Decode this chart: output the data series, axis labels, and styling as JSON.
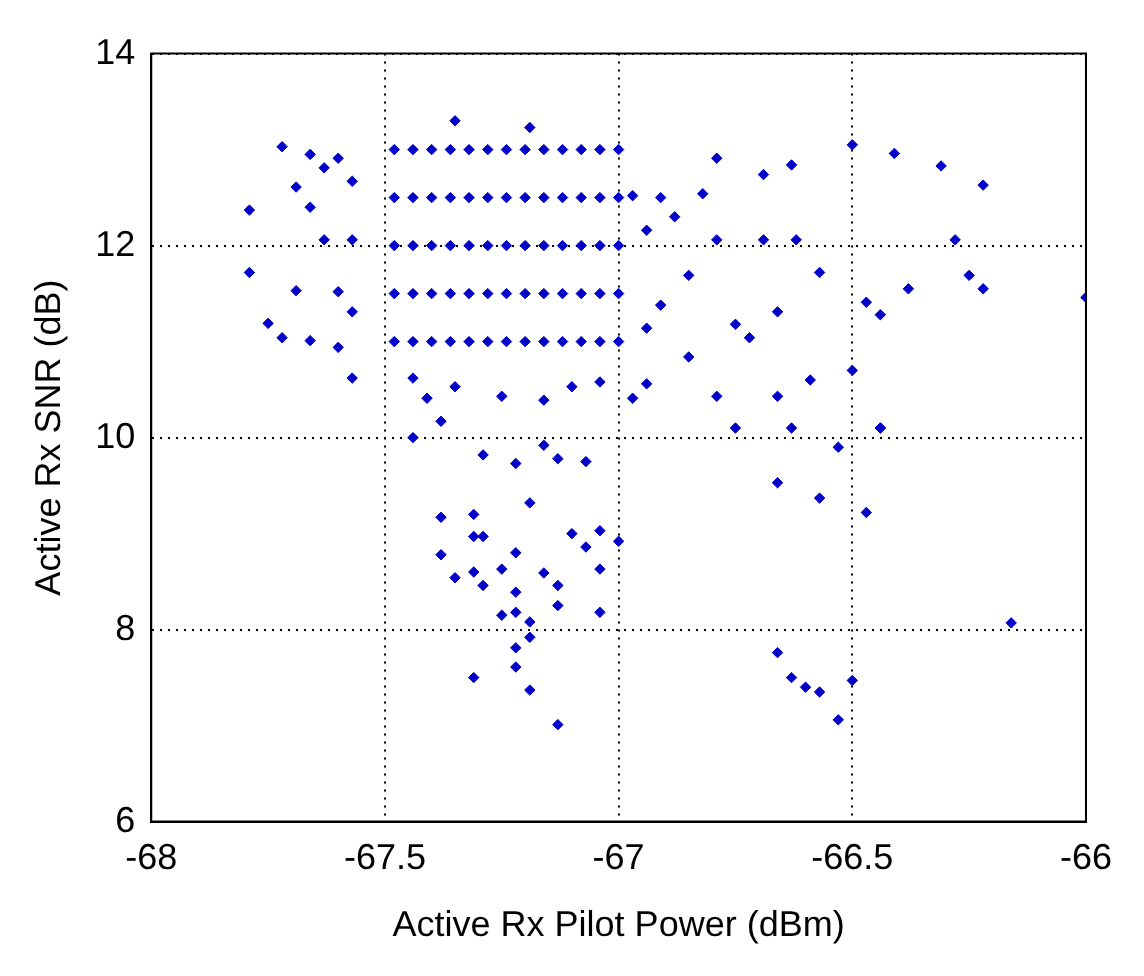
{
  "chart_data": {
    "type": "scatter",
    "xlabel": "Active Rx Pilot Power (dBm)",
    "ylabel": "Active Rx SNR (dB)",
    "xlim": [
      -68,
      -66
    ],
    "xticks": [
      -68,
      -67.5,
      -67,
      -66.5,
      -66
    ],
    "ylim": [
      6,
      14
    ],
    "yticks": [
      6,
      8,
      10,
      12,
      14
    ],
    "grid": true,
    "legend": false,
    "marker": "diamond",
    "series": [
      {
        "color": "#0000c8",
        "x": [
          -67.48,
          -67.44,
          -67.4,
          -67.36,
          -67.32,
          -67.28,
          -67.24,
          -67.2,
          -67.16,
          -67.12,
          -67.08,
          -67.04,
          -67.0,
          -67.48,
          -67.44,
          -67.4,
          -67.36,
          -67.32,
          -67.28,
          -67.24,
          -67.2,
          -67.16,
          -67.12,
          -67.08,
          -67.04,
          -67.0,
          -67.48,
          -67.44,
          -67.4,
          -67.36,
          -67.32,
          -67.28,
          -67.24,
          -67.2,
          -67.16,
          -67.12,
          -67.08,
          -67.04,
          -67.0,
          -67.48,
          -67.44,
          -67.4,
          -67.36,
          -67.32,
          -67.28,
          -67.24,
          -67.2,
          -67.16,
          -67.12,
          -67.08,
          -67.04,
          -67.0,
          -67.48,
          -67.44,
          -67.4,
          -67.36,
          -67.32,
          -67.28,
          -67.24,
          -67.2,
          -67.16,
          -67.12,
          -67.08,
          -67.04,
          -67.0,
          -67.35,
          -67.19,
          -67.44,
          -67.41,
          -67.35,
          -67.38,
          -67.25,
          -67.16,
          -67.1,
          -67.04,
          -67.44,
          -67.38,
          -67.31,
          -67.29,
          -67.22,
          -67.16,
          -67.13,
          -67.07,
          -67.19,
          -67.31,
          -67.29,
          -67.38,
          -67.35,
          -67.31,
          -67.29,
          -67.25,
          -67.22,
          -67.25,
          -67.22,
          -67.22,
          -67.19,
          -67.19,
          -67.22,
          -67.16,
          -67.13,
          -67.13,
          -67.1,
          -67.07,
          -67.04,
          -67.04,
          -67.04,
          -67.0,
          -67.31,
          -67.22,
          -67.19,
          -67.13,
          -66.66,
          -66.57,
          -66.53,
          -66.47,
          -66.44,
          -66.66,
          -66.63,
          -66.6,
          -66.57,
          -66.5,
          -66.53,
          -66.16,
          -66.75,
          -66.63,
          -66.0,
          -66.79,
          -66.5,
          -66.41,
          -66.31,
          -66.22,
          -66.22,
          -66.25,
          -66.28,
          -66.38,
          -66.44,
          -66.47,
          -66.5,
          -66.44,
          -66.63,
          -66.69,
          -66.69,
          -66.62,
          -66.57,
          -66.66,
          -66.75,
          -66.72,
          -66.59,
          -66.79,
          -66.66,
          -66.79,
          -66.82,
          -66.85,
          -66.88,
          -66.91,
          -66.91,
          -66.94,
          -66.94,
          -66.85,
          -66.94,
          -66.97,
          -66.97,
          -67.79,
          -67.79,
          -67.75,
          -67.72,
          -67.72,
          -67.69,
          -67.69,
          -67.66,
          -67.66,
          -67.63,
          -67.63,
          -67.6,
          -67.6,
          -67.57,
          -67.57,
          -67.57,
          -67.57,
          -67.6,
          -67.66
        ],
        "values": [
          11.0,
          11.0,
          11.0,
          11.0,
          11.0,
          11.0,
          11.0,
          11.0,
          11.0,
          11.0,
          11.0,
          11.0,
          11.0,
          11.5,
          11.5,
          11.5,
          11.5,
          11.5,
          11.5,
          11.5,
          11.5,
          11.5,
          11.5,
          11.5,
          11.5,
          11.5,
          12.0,
          12.0,
          12.0,
          12.0,
          12.0,
          12.0,
          12.0,
          12.0,
          12.0,
          12.0,
          12.0,
          12.0,
          12.0,
          12.5,
          12.5,
          12.5,
          12.5,
          12.5,
          12.5,
          12.5,
          12.5,
          12.5,
          12.5,
          12.5,
          12.5,
          12.5,
          13.0,
          13.0,
          13.0,
          13.0,
          13.0,
          13.0,
          13.0,
          13.0,
          13.0,
          13.0,
          13.0,
          13.0,
          13.0,
          13.3,
          13.23,
          10.62,
          10.41,
          10.53,
          10.17,
          10.43,
          10.39,
          10.53,
          10.58,
          10.0,
          9.17,
          9.2,
          9.82,
          9.73,
          9.92,
          9.78,
          9.75,
          9.32,
          8.97,
          8.97,
          8.78,
          8.54,
          8.6,
          8.46,
          8.63,
          8.8,
          8.15,
          8.39,
          8.18,
          8.08,
          7.92,
          7.81,
          8.59,
          8.46,
          8.25,
          9.0,
          8.86,
          9.03,
          8.63,
          8.18,
          8.92,
          7.5,
          7.61,
          7.37,
          7.01,
          9.53,
          9.37,
          9.9,
          9.22,
          10.1,
          7.76,
          7.5,
          7.4,
          7.35,
          7.47,
          7.06,
          8.07,
          10.1,
          10.1,
          11.46,
          12.91,
          13.05,
          12.96,
          12.83,
          12.63,
          11.55,
          11.69,
          12.06,
          11.55,
          11.28,
          11.41,
          10.7,
          10.1,
          12.84,
          12.74,
          12.06,
          12.06,
          11.72,
          11.31,
          11.18,
          11.04,
          10.6,
          10.43,
          10.43,
          12.06,
          12.54,
          11.69,
          12.3,
          12.5,
          11.38,
          12.16,
          11.14,
          10.84,
          10.56,
          12.52,
          10.41,
          12.37,
          11.72,
          11.19,
          13.03,
          11.04,
          12.61,
          11.53,
          12.95,
          11.01,
          12.81,
          12.06,
          12.91,
          10.94,
          12.67,
          12.06,
          11.31,
          10.62,
          11.52,
          12.4
        ]
      }
    ]
  }
}
